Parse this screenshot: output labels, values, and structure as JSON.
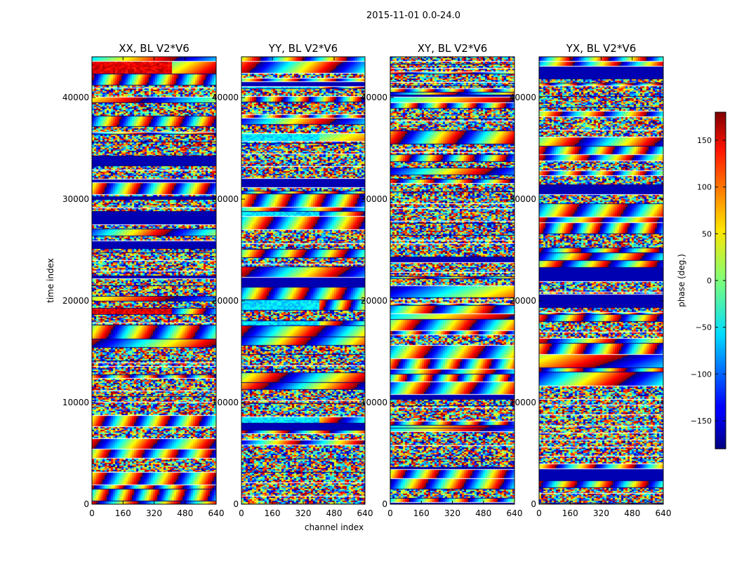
{
  "chart_data": {
    "type": "heatmap",
    "suptitle": "2015-11-01 0.0-24.0",
    "panels": [
      {
        "title": "XX, BL V2*V6",
        "pol": "XX",
        "seed": 11
      },
      {
        "title": "YY, BL V2*V6",
        "pol": "YY",
        "seed": 23
      },
      {
        "title": "XY, BL V2*V6",
        "pol": "XY",
        "seed": 37
      },
      {
        "title": "YX, BL V2*V6",
        "pol": "YX",
        "seed": 53
      }
    ],
    "xlabel": "channel index",
    "ylabel": "time index",
    "xlim": [
      0,
      640
    ],
    "ylim": [
      0,
      44000
    ],
    "xticks": [
      0,
      160,
      320,
      480,
      640
    ],
    "yticks": [
      0,
      10000,
      20000,
      30000,
      40000
    ],
    "colorbar": {
      "label": "phase (deg.)",
      "range": [
        -180,
        180
      ],
      "ticks": [
        150,
        100,
        50,
        0,
        -50,
        -100,
        -150
      ],
      "tick_labels": [
        "150",
        "100",
        "50",
        "0",
        "−50",
        "−100",
        "−150"
      ],
      "colormap": "jet"
    }
  }
}
